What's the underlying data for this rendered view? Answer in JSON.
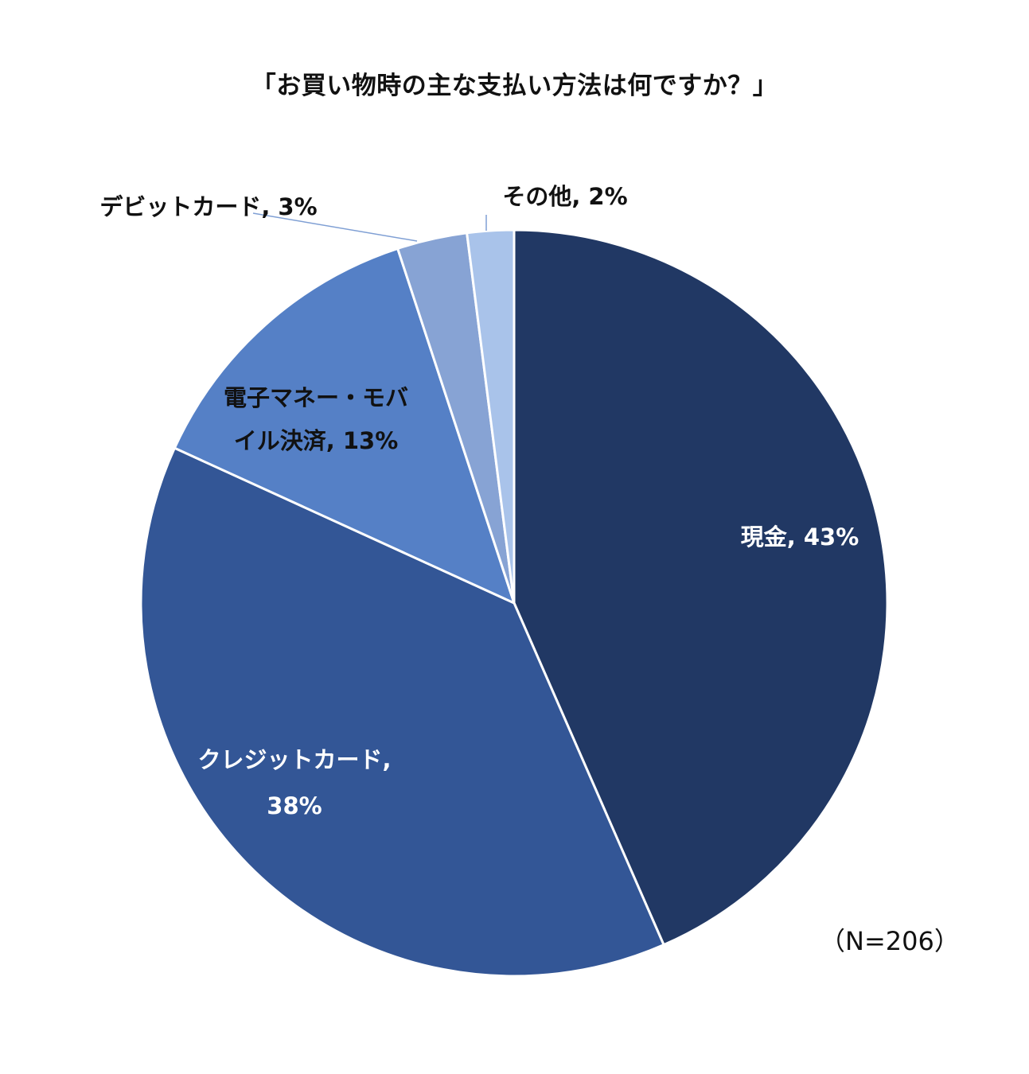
{
  "chart_data": {
    "type": "pie",
    "title": "「お買い物時の主な支払い方法は何ですか？」",
    "note": "（N=206）",
    "slices": [
      {
        "label": "現金",
        "value": 43,
        "display": "現金, 43%",
        "color": "#213864",
        "label_color": "#ffffff"
      },
      {
        "label": "クレジットカード",
        "value": 38,
        "display": "クレジットカード,\n38%",
        "color": "#335696",
        "label_color": "#ffffff"
      },
      {
        "label": "電子マネー・モバイル決済",
        "value": 13,
        "display": "電子マネー・モバ\nイル決済, 13%",
        "color": "#5580c6",
        "label_color": "#111111"
      },
      {
        "label": "デビットカード",
        "value": 3,
        "display": "デビットカード, 3%",
        "color": "#87a3d4",
        "label_color": "#111111"
      },
      {
        "label": "その他",
        "value": 2,
        "display": "その他, 2%",
        "color": "#a9c3ea",
        "label_color": "#111111"
      }
    ]
  }
}
